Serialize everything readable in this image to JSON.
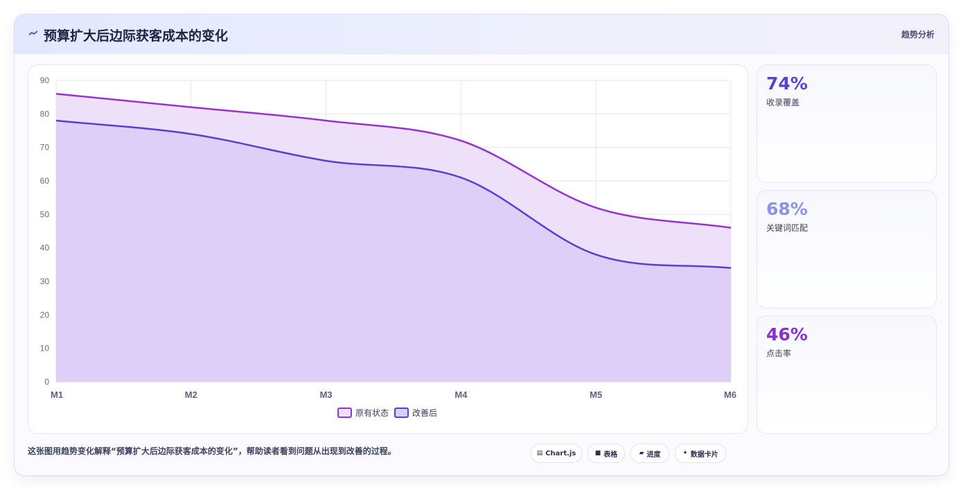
{
  "header": {
    "title": "预算扩大后边际获客成本的变化",
    "tag": "趋势分析"
  },
  "stats": [
    {
      "value": "74%",
      "label": "收录覆盖",
      "color": "#5b3fd6"
    },
    {
      "value": "68%",
      "label": "关键词匹配",
      "color": "#8b93e8"
    },
    {
      "value": "46%",
      "label": "点击率",
      "color": "#8a2fd0"
    }
  ],
  "footer": {
    "description": "这张图用趋势变化解释“预算扩大后边际获客成本的变化”，帮助读者看到问题从出现到改善的过程。",
    "chips": [
      {
        "icon": "chart-icon",
        "glyph": "▤",
        "label": "Chart.js"
      },
      {
        "icon": "table-icon",
        "glyph": "■",
        "label": "表格"
      },
      {
        "icon": "progress-icon",
        "glyph": "▰",
        "label": "进度"
      },
      {
        "icon": "sparkle-icon",
        "glyph": "✦",
        "label": "数据卡片"
      }
    ]
  },
  "chart_data": {
    "type": "area",
    "x": [
      "M1",
      "M2",
      "M3",
      "M4",
      "M5",
      "M6"
    ],
    "series": [
      {
        "name": "原有状态",
        "values": [
          86,
          82,
          78,
          72,
          52,
          46
        ],
        "color": "#9333d6",
        "fill": "#efe0fa"
      },
      {
        "name": "改善后",
        "values": [
          78,
          74,
          66,
          61,
          38,
          34
        ],
        "color": "#5540d6",
        "fill": "#dccdf8"
      }
    ],
    "ylim": [
      0,
      90
    ],
    "yticks": [
      0,
      10,
      20,
      30,
      40,
      50,
      60,
      70,
      80,
      90
    ],
    "grid": true,
    "legend": "bottom"
  }
}
